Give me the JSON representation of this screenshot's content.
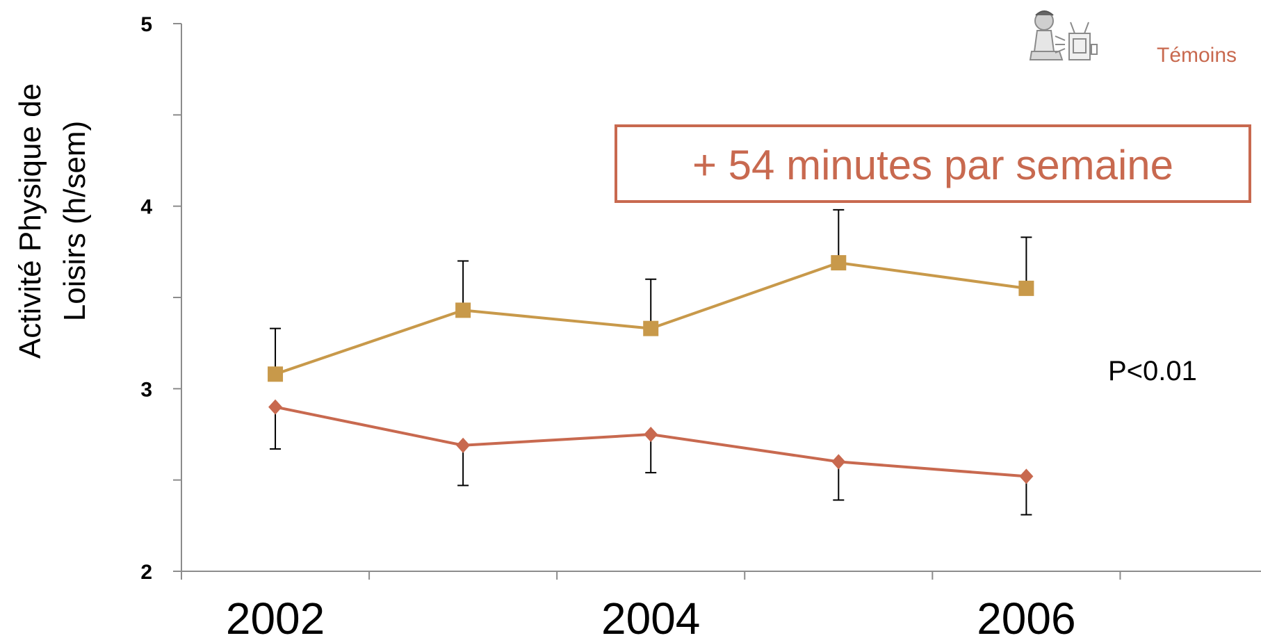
{
  "chart_data": {
    "type": "line",
    "ylabel": "Activité Physique de Loisirs (h/sem)",
    "ylabel_lines": [
      "Activité Physique de",
      "Loisirs (h/sem)"
    ],
    "ylim": [
      2,
      5
    ],
    "y_ticks": [
      "2",
      "3",
      "4",
      "5"
    ],
    "x_ticks": [
      "2002",
      "2004",
      "2006"
    ],
    "grid": false,
    "legend_position": "top-right",
    "series": [
      {
        "name": "",
        "color": "#c8994a",
        "marker": "square",
        "x": [
          2002,
          2003,
          2004,
          2005,
          2006
        ],
        "values": [
          3.08,
          3.43,
          3.33,
          3.69,
          3.55
        ],
        "error": [
          0.25,
          0.27,
          0.27,
          0.29,
          0.28
        ]
      },
      {
        "name": "Témoins",
        "color": "#c8694f",
        "marker": "diamond",
        "x": [
          2002,
          2003,
          2004,
          2005,
          2006
        ],
        "values": [
          2.9,
          2.69,
          2.75,
          2.6,
          2.52
        ],
        "error": [
          0.23,
          0.22,
          0.21,
          0.21,
          0.21
        ]
      }
    ],
    "annotations": {
      "box_text": "+ 54 minutes par semaine",
      "box_color": "#c8694f",
      "pvalue": "P<0.01"
    },
    "legend_icon": "tv-watcher-icon"
  }
}
